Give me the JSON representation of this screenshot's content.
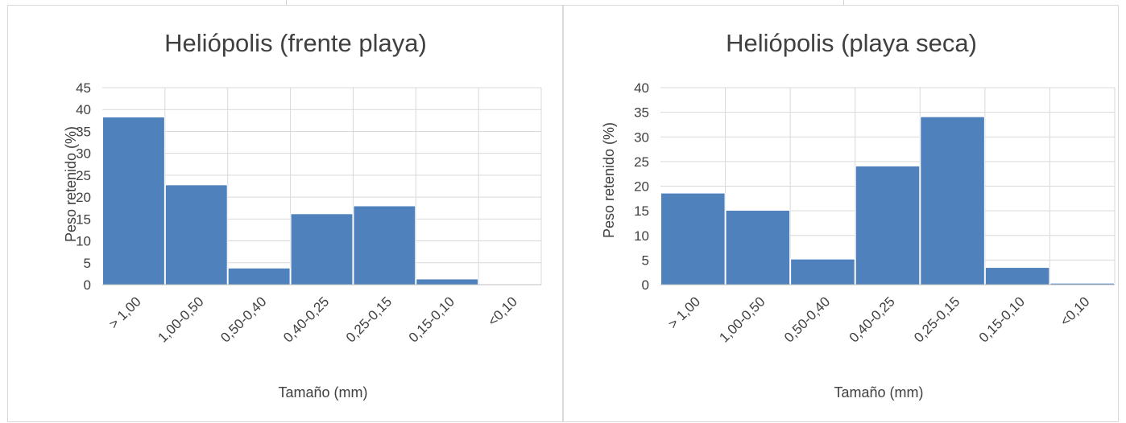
{
  "chart_data": [
    {
      "type": "bar",
      "title": "Heliópolis (frente playa)",
      "xlabel": "Tamaño (mm)",
      "ylabel": "Peso retenido (%)",
      "categories": [
        "> 1,00",
        "1,00-0,50",
        "0,50-0,40",
        "0,40-0,25",
        "0,25-0,15",
        "0,15-0,10",
        "<0,10"
      ],
      "values": [
        38.3,
        22.8,
        3.8,
        16.2,
        18.0,
        1.3,
        0
      ],
      "ylim": [
        0,
        45
      ],
      "yticks": [
        "0",
        "5",
        "10",
        "15",
        "20",
        "25",
        "30",
        "35",
        "40",
        "45"
      ],
      "grid": true,
      "bar_color": "#4f81bd"
    },
    {
      "type": "bar",
      "title": "Heliópolis (playa seca)",
      "xlabel": "Tamaño (mm)",
      "ylabel": "Peso retenido (%)",
      "categories": [
        "> 1,00",
        "1,00-0,50",
        "0,50-0,40",
        "0,40-0,25",
        "0,25-0,15",
        "0,15-0,10",
        "<0,10"
      ],
      "values": [
        18.6,
        15.1,
        5.2,
        24.1,
        34.1,
        3.5,
        0.3
      ],
      "ylim": [
        0,
        40
      ],
      "yticks": [
        "0",
        "5",
        "10",
        "15",
        "20",
        "25",
        "30",
        "35",
        "40"
      ],
      "grid": true,
      "bar_color": "#4f81bd"
    }
  ]
}
